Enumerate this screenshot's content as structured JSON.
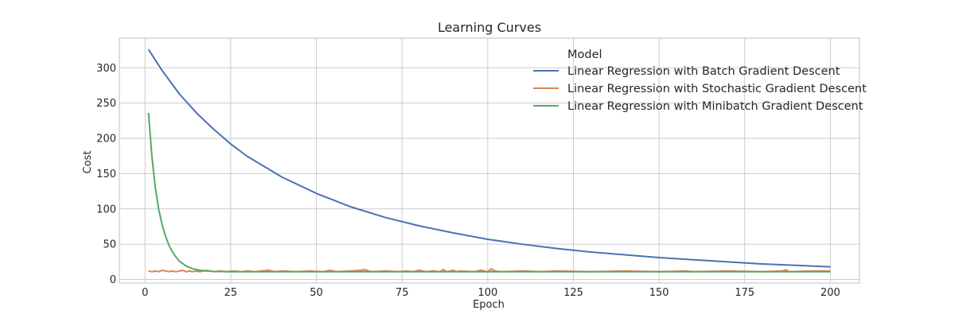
{
  "chart_data": {
    "type": "line",
    "title": "Learning Curves",
    "xlabel": "Epoch",
    "ylabel": "Cost",
    "xlim": [
      -7.5,
      208.5
    ],
    "ylim": [
      -5,
      342
    ],
    "xticks": [
      0,
      25,
      50,
      75,
      100,
      125,
      150,
      175,
      200
    ],
    "yticks": [
      0,
      50,
      100,
      150,
      200,
      250,
      300
    ],
    "grid": true,
    "legend": {
      "title": "Model",
      "placement": "top-right"
    },
    "series": [
      {
        "name": "Linear Regression with Batch Gradient Descent",
        "color": "#4c72b0",
        "x": [
          1,
          5,
          10,
          15,
          20,
          25,
          30,
          40,
          50,
          60,
          70,
          80,
          90,
          100,
          110,
          120,
          130,
          140,
          150,
          160,
          170,
          180,
          190,
          200
        ],
        "y": [
          326,
          296,
          263,
          236,
          213,
          192,
          174,
          145,
          122,
          103,
          88,
          76,
          66,
          57,
          50,
          44,
          39,
          35,
          31,
          28,
          25,
          22,
          20,
          18
        ]
      },
      {
        "name": "Linear Regression with Stochastic Gradient Descent",
        "color": "#dd8452",
        "x": [
          1,
          2,
          3,
          4,
          5,
          6,
          7,
          8,
          9,
          10,
          11,
          12,
          13,
          14,
          15,
          16,
          18,
          20,
          22,
          24,
          26,
          28,
          30,
          32,
          34,
          36,
          38,
          40,
          44,
          48,
          52,
          54,
          56,
          60,
          63,
          64,
          66,
          70,
          74,
          76,
          78,
          80,
          82,
          84,
          86,
          87,
          88,
          90,
          91,
          92,
          96,
          98,
          100,
          101,
          102,
          104,
          110,
          116,
          120,
          130,
          140,
          150,
          158,
          160,
          170,
          180,
          186,
          187,
          188,
          195,
          200
        ],
        "y": [
          12,
          11,
          12,
          11,
          13,
          12,
          11,
          12,
          11,
          12,
          13,
          11,
          12,
          11,
          12,
          11,
          13,
          11,
          12,
          11,
          12,
          11,
          12,
          11,
          12,
          13,
          11,
          12,
          11,
          12,
          11,
          13,
          11,
          12,
          13,
          14,
          11,
          12,
          11,
          12,
          11,
          13,
          11,
          12,
          11,
          14,
          11,
          13,
          11,
          12,
          11,
          13,
          11,
          15,
          12,
          11,
          12,
          11,
          12,
          11,
          12,
          11,
          12,
          11,
          12,
          11,
          12,
          14,
          11,
          12,
          12
        ]
      },
      {
        "name": "Linear Regression with Minibatch Gradient Descent",
        "color": "#55a868",
        "x": [
          1,
          2,
          3,
          4,
          5,
          6,
          7,
          8,
          9,
          10,
          12,
          14,
          16,
          18,
          20,
          25,
          30,
          40,
          50,
          60,
          70,
          80,
          90,
          100,
          120,
          140,
          160,
          180,
          200
        ],
        "y": [
          236,
          174,
          130,
          99,
          77,
          61,
          48,
          39,
          32,
          26,
          19,
          15,
          13,
          12,
          11.5,
          11,
          11,
          11,
          11,
          11,
          11,
          11,
          11,
          11,
          11,
          11,
          11,
          11,
          11
        ]
      }
    ]
  }
}
